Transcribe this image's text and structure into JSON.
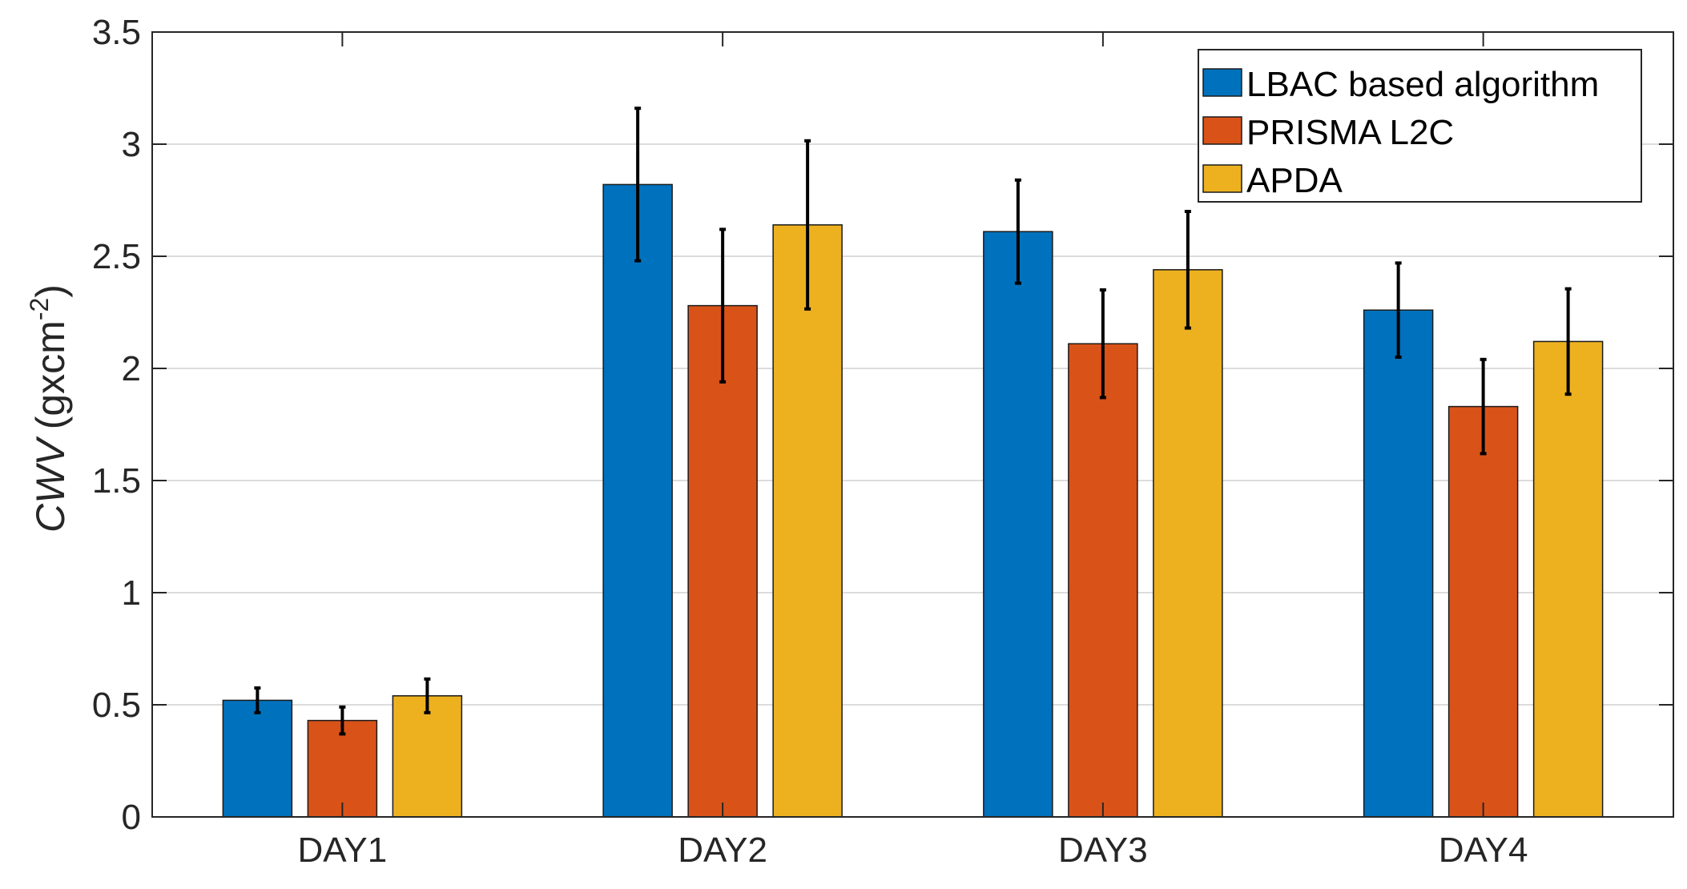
{
  "chart_data": {
    "type": "bar",
    "title": "",
    "xlabel": "",
    "ylabel": {
      "italic_part": "CWV",
      "unit_prefix": "(gxcm",
      "unit_superscript": "-2",
      "unit_suffix": ")"
    },
    "ylim": [
      0,
      3.5
    ],
    "yticks": [
      0,
      0.5,
      1,
      1.5,
      2,
      2.5,
      3,
      3.5
    ],
    "ytick_labels": [
      "0",
      "0.5",
      "1",
      "1.5",
      "2",
      "2.5",
      "3",
      "3.5"
    ],
    "categories": [
      "DAY1",
      "DAY2",
      "DAY3",
      "DAY4"
    ],
    "legend_position": "top-right",
    "series": [
      {
        "name": "LBAC based algorithm",
        "color": "#0072BD",
        "values": [
          0.52,
          2.82,
          2.61,
          2.26
        ],
        "errors": [
          0.055,
          0.34,
          0.23,
          0.21
        ]
      },
      {
        "name": "PRISMA L2C",
        "color": "#D95319",
        "values": [
          0.43,
          2.28,
          2.11,
          1.83
        ],
        "errors": [
          0.06,
          0.34,
          0.24,
          0.21
        ]
      },
      {
        "name": "APDA",
        "color": "#EDB120",
        "values": [
          0.54,
          2.64,
          2.44,
          2.12
        ],
        "errors": [
          0.075,
          0.375,
          0.26,
          0.235
        ]
      }
    ]
  }
}
